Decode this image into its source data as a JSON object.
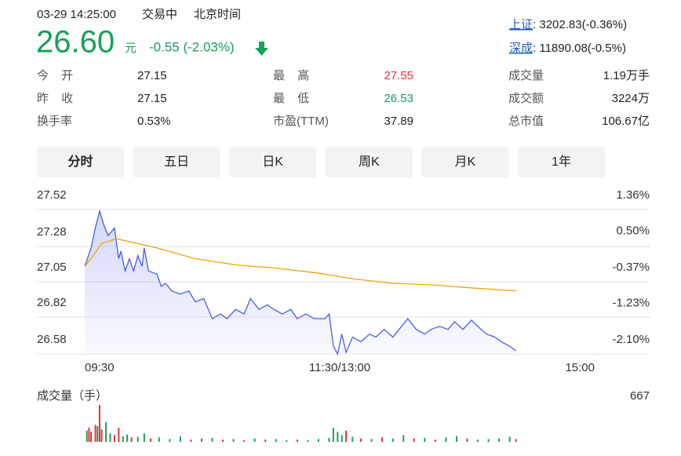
{
  "quote": {
    "time": "03-29 14:25:00",
    "status": "交易中",
    "timezone": "北京时间",
    "price": "26.60",
    "unit": "元",
    "change": "-0.55 (-2.03%)"
  },
  "indices": [
    {
      "name": "上证",
      "value": ": 3202.83(-0.36%)"
    },
    {
      "name": "深成",
      "value": ": 11890.08(-0.5%)"
    }
  ],
  "stats": [
    [
      {
        "label": "今 开",
        "value": "27.15"
      },
      {
        "label": "最 高",
        "value": "27.55"
      },
      {
        "label": "成交量",
        "value": "1.19万手"
      }
    ],
    [
      {
        "label": "昨 收",
        "value": "27.15"
      },
      {
        "label": "最 低",
        "value": "26.53"
      },
      {
        "label": "成交额",
        "value": "3224万"
      }
    ],
    [
      {
        "label": "换手率",
        "value": "0.53%"
      },
      {
        "label": "市盈(TTM)",
        "value": "37.89"
      },
      {
        "label": "总市值",
        "value": "106.67亿"
      }
    ]
  ],
  "tabs": [
    "分时",
    "五日",
    "日K",
    "周K",
    "月K",
    "1年"
  ],
  "chart_data": [
    {
      "type": "line",
      "xlim": [
        0,
        240
      ],
      "xticks": [
        {
          "value": 0,
          "label": "09:30"
        },
        {
          "value": 120,
          "label": "11:30/13:00"
        },
        {
          "value": 240,
          "label": "15:00"
        }
      ],
      "ylim": [
        26.58,
        27.52
      ],
      "yticks": [
        27.52,
        27.28,
        27.05,
        26.82,
        26.58
      ],
      "y2lim": [
        -2.1,
        1.36
      ],
      "y2ticks": [
        {
          "value": 1.36,
          "label": "1.36%"
        },
        {
          "value": 0.5,
          "label": "0.50%"
        },
        {
          "value": -0.37,
          "label": "-0.37%"
        },
        {
          "value": -1.23,
          "label": "-1.23%"
        },
        {
          "value": -2.1,
          "label": "-2.10%"
        }
      ],
      "grid": true,
      "series": [
        {
          "color": "#4a5de6",
          "area": true,
          "x": [
            0,
            3,
            5,
            7,
            9,
            11,
            14,
            16,
            17,
            19,
            21,
            23,
            25,
            27,
            28,
            30,
            34,
            36,
            38,
            41,
            45,
            49,
            52,
            56,
            60,
            64,
            67,
            71,
            75,
            78,
            82,
            86,
            89,
            93,
            97,
            100,
            104,
            108,
            113,
            115,
            117,
            119,
            121,
            123,
            126,
            130,
            134,
            137,
            141,
            145,
            148,
            152,
            156,
            160,
            163,
            167,
            171,
            174,
            178,
            182,
            185,
            189,
            193,
            196,
            200,
            203
          ],
          "values": [
            27.15,
            27.27,
            27.4,
            27.51,
            27.42,
            27.35,
            27.4,
            27.2,
            27.25,
            27.12,
            27.2,
            27.12,
            27.22,
            27.15,
            27.27,
            27.12,
            27.1,
            27.02,
            27.04,
            26.99,
            26.97,
            26.99,
            26.92,
            26.94,
            26.81,
            26.84,
            26.81,
            26.87,
            26.84,
            26.94,
            26.87,
            26.9,
            26.87,
            26.84,
            26.87,
            26.81,
            26.84,
            26.81,
            26.81,
            26.84,
            26.63,
            26.58,
            26.71,
            26.59,
            26.69,
            26.66,
            26.71,
            26.69,
            26.74,
            26.69,
            26.74,
            26.81,
            26.74,
            26.71,
            26.74,
            26.76,
            26.74,
            26.79,
            26.74,
            26.8,
            26.76,
            26.71,
            26.69,
            26.66,
            26.63,
            26.6
          ]
        },
        {
          "color": "#f0a30a",
          "area": false,
          "x": [
            0,
            4,
            8,
            15,
            34,
            52,
            71,
            89,
            108,
            126,
            145,
            163,
            182,
            203
          ],
          "values": [
            27.15,
            27.22,
            27.3,
            27.33,
            27.27,
            27.2,
            27.16,
            27.14,
            27.11,
            27.07,
            27.04,
            27.03,
            27.01,
            26.99
          ]
        }
      ]
    },
    {
      "type": "bar",
      "title": "成交量（手）",
      "xlim": [
        0,
        240
      ],
      "ylim": [
        0,
        667
      ],
      "yticks": [
        667
      ],
      "x": [
        1,
        2,
        3,
        5,
        6,
        7,
        8,
        10,
        12,
        14,
        16,
        18,
        20,
        22,
        25,
        28,
        31,
        35,
        40,
        45,
        50,
        55,
        60,
        65,
        70,
        75,
        80,
        85,
        90,
        95,
        100,
        105,
        110,
        115,
        117,
        119,
        121,
        123,
        126,
        130,
        135,
        140,
        145,
        150,
        155,
        160,
        165,
        170,
        175,
        180,
        185,
        190,
        195,
        200,
        203
      ],
      "values": [
        200,
        250,
        180,
        300,
        280,
        650,
        220,
        350,
        150,
        120,
        250,
        100,
        130,
        80,
        90,
        150,
        60,
        80,
        50,
        100,
        40,
        60,
        70,
        40,
        50,
        30,
        60,
        40,
        50,
        30,
        40,
        30,
        50,
        70,
        250,
        180,
        120,
        200,
        90,
        60,
        50,
        80,
        60,
        120,
        60,
        70,
        40,
        80,
        100,
        60,
        40,
        50,
        60,
        90,
        50
      ],
      "colors": [
        "#1aa05a",
        "#e6303a",
        "#e6303a",
        "#e6303a",
        "#1aa05a",
        "#e6303a",
        "#e6303a",
        "#1aa05a",
        "#1aa05a",
        "#e6303a",
        "#e6303a",
        "#1aa05a",
        "#1aa05a",
        "#e6303a",
        "#1aa05a",
        "#1aa05a",
        "#e6303a",
        "#1aa05a",
        "#1aa05a",
        "#1aa05a",
        "#e6303a",
        "#1aa05a",
        "#1aa05a",
        "#e6303a",
        "#1aa05a",
        "#e6303a",
        "#1aa05a",
        "#e6303a",
        "#1aa05a",
        "#1aa05a",
        "#e6303a",
        "#1aa05a",
        "#1aa05a",
        "#1aa05a",
        "#1aa05a",
        "#1aa05a",
        "#1aa05a",
        "#e6303a",
        "#1aa05a",
        "#e6303a",
        "#1aa05a",
        "#e6303a",
        "#1aa05a",
        "#1aa05a",
        "#e6303a",
        "#1aa05a",
        "#e6303a",
        "#1aa05a",
        "#1aa05a",
        "#e6303a",
        "#1aa05a",
        "#1aa05a",
        "#1aa05a",
        "#1aa05a",
        "#e6303a"
      ]
    }
  ]
}
